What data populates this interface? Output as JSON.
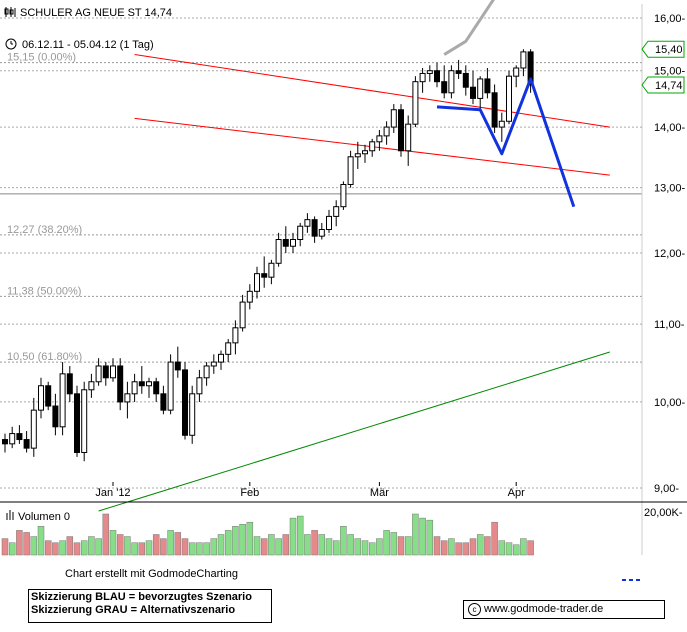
{
  "header": {
    "title": "SCHULER AG NEUE ST 14,74",
    "period": "06.12.11 - 05.04.12 (1 Tag)"
  },
  "icons": {
    "chart": "candlestick-chart-icon",
    "clock": "clock-icon",
    "volume": "volume-bars-icon",
    "copyright": "copyright-icon"
  },
  "fib_levels": [
    {
      "label": "15,15 (0.00%)",
      "value": 15.15
    },
    {
      "label": "12,27 (38.20%)",
      "value": 12.27
    },
    {
      "label": "11,38 (50.00%)",
      "value": 11.38
    },
    {
      "label": "10,50 (61.80%)",
      "value": 10.5
    }
  ],
  "price_badges": [
    {
      "label": "15,40",
      "value": 15.4
    },
    {
      "label": "14,74",
      "value": 14.74
    }
  ],
  "volume": {
    "label": "Volumen 0",
    "axis_label": "20,00K-"
  },
  "credit": "Chart erstellt mit GodmodeCharting",
  "legend_box": {
    "line1": "Skizzierung BLAU = bevorzugtes Szenario",
    "line2": "Skizzierung GRAU = Alternativszenario"
  },
  "source": "www.godmode-trader.de",
  "colors": {
    "up": "#88dd88",
    "down": "#e58a8a",
    "blue_scenario": "#1133dd",
    "grey_scenario": "#aaaaaa",
    "channel": "#ff0000",
    "trendline": "#008800",
    "badge_border": "#00aa00"
  },
  "chart_data": {
    "type": "candlestick",
    "title": "SCHULER AG NEUE ST 14,74",
    "y_axis": {
      "scale": "log",
      "ticks": [
        9.0,
        10.0,
        11.0,
        12.0,
        13.0,
        14.0,
        15.0,
        16.0
      ],
      "tick_labels": [
        "9,00",
        "10,00",
        "11,00",
        "12,00",
        "13,00",
        "14,00",
        "15,00",
        "16,00"
      ]
    },
    "x_labels": [
      "Jan '12",
      "Feb",
      "Mär",
      "Apr"
    ],
    "horizontal_line": 12.9,
    "red_channel": {
      "upper": [
        [
          18,
          15.3
        ],
        [
          84,
          14.0
        ]
      ],
      "lower": [
        [
          18,
          14.15
        ],
        [
          84,
          13.2
        ]
      ]
    },
    "green_trendline": [
      [
        13,
        8.75
      ],
      [
        84,
        10.63
      ]
    ],
    "blue_scenario": [
      [
        60,
        14.35
      ],
      [
        66,
        14.3
      ],
      [
        69,
        13.55
      ],
      [
        73,
        14.85
      ],
      [
        79,
        12.7
      ]
    ],
    "grey_scenario": [
      [
        61,
        15.3
      ],
      [
        64,
        15.55
      ],
      [
        68,
        16.4
      ]
    ],
    "ohlc": [
      [
        9.55,
        9.62,
        9.4,
        9.5
      ],
      [
        9.5,
        9.7,
        9.45,
        9.62
      ],
      [
        9.62,
        9.72,
        9.5,
        9.55
      ],
      [
        9.55,
        9.65,
        9.4,
        9.45
      ],
      [
        9.45,
        10.05,
        9.35,
        9.9
      ],
      [
        9.9,
        10.3,
        9.8,
        10.2
      ],
      [
        10.2,
        10.25,
        9.9,
        9.95
      ],
      [
        9.95,
        10.1,
        9.6,
        9.7
      ],
      [
        9.7,
        10.5,
        9.6,
        10.35
      ],
      [
        10.35,
        10.45,
        10.0,
        10.1
      ],
      [
        10.1,
        10.2,
        9.35,
        9.4
      ],
      [
        9.4,
        10.25,
        9.3,
        10.15
      ],
      [
        10.15,
        10.35,
        10.05,
        10.25
      ],
      [
        10.25,
        10.55,
        10.2,
        10.45
      ],
      [
        10.45,
        10.5,
        10.2,
        10.3
      ],
      [
        10.3,
        10.55,
        10.25,
        10.45
      ],
      [
        10.45,
        10.55,
        9.9,
        10.0
      ],
      [
        10.0,
        10.25,
        9.8,
        10.1
      ],
      [
        10.1,
        10.35,
        10.0,
        10.25
      ],
      [
        10.25,
        10.45,
        10.1,
        10.2
      ],
      [
        10.2,
        10.3,
        10.05,
        10.25
      ],
      [
        10.25,
        10.3,
        10.0,
        10.1
      ],
      [
        10.1,
        10.2,
        9.85,
        9.9
      ],
      [
        9.9,
        10.6,
        9.85,
        10.5
      ],
      [
        10.5,
        10.7,
        10.3,
        10.4
      ],
      [
        10.4,
        10.5,
        9.55,
        9.6
      ],
      [
        9.6,
        10.2,
        9.5,
        10.1
      ],
      [
        10.1,
        10.4,
        10.0,
        10.3
      ],
      [
        10.3,
        10.5,
        10.2,
        10.45
      ],
      [
        10.45,
        10.6,
        10.35,
        10.5
      ],
      [
        10.5,
        10.65,
        10.4,
        10.6
      ],
      [
        10.6,
        10.8,
        10.5,
        10.75
      ],
      [
        10.75,
        11.05,
        10.6,
        10.95
      ],
      [
        10.95,
        11.4,
        10.9,
        11.3
      ],
      [
        11.3,
        11.55,
        11.2,
        11.45
      ],
      [
        11.45,
        11.8,
        11.35,
        11.7
      ],
      [
        11.7,
        11.95,
        11.5,
        11.65
      ],
      [
        11.65,
        11.9,
        11.55,
        11.85
      ],
      [
        11.85,
        12.3,
        11.8,
        12.2
      ],
      [
        12.2,
        12.4,
        12.0,
        12.1
      ],
      [
        12.1,
        12.3,
        12.0,
        12.2
      ],
      [
        12.2,
        12.45,
        12.1,
        12.4
      ],
      [
        12.4,
        12.6,
        12.3,
        12.5
      ],
      [
        12.5,
        12.55,
        12.15,
        12.25
      ],
      [
        12.25,
        12.45,
        12.2,
        12.35
      ],
      [
        12.35,
        12.65,
        12.3,
        12.55
      ],
      [
        12.55,
        12.8,
        12.4,
        12.7
      ],
      [
        12.7,
        13.1,
        12.65,
        13.05
      ],
      [
        13.05,
        13.6,
        13.0,
        13.5
      ],
      [
        13.5,
        13.75,
        13.3,
        13.55
      ],
      [
        13.55,
        13.7,
        13.4,
        13.6
      ],
      [
        13.6,
        13.8,
        13.5,
        13.75
      ],
      [
        13.75,
        13.95,
        13.6,
        13.85
      ],
      [
        13.85,
        14.1,
        13.7,
        14.0
      ],
      [
        14.0,
        14.4,
        13.9,
        14.3
      ],
      [
        14.3,
        14.4,
        13.5,
        13.6
      ],
      [
        13.6,
        14.2,
        13.35,
        14.05
      ],
      [
        14.05,
        14.9,
        14.0,
        14.8
      ],
      [
        14.8,
        15.05,
        14.6,
        14.95
      ],
      [
        14.95,
        15.1,
        14.8,
        15.0
      ],
      [
        15.0,
        15.15,
        14.7,
        14.8
      ],
      [
        14.8,
        15.1,
        14.5,
        14.6
      ],
      [
        14.6,
        15.1,
        14.5,
        15.0
      ],
      [
        15.0,
        15.2,
        14.85,
        14.95
      ],
      [
        14.95,
        15.1,
        14.55,
        14.7
      ],
      [
        14.7,
        15.0,
        14.4,
        14.5
      ],
      [
        14.5,
        14.9,
        14.3,
        14.85
      ],
      [
        14.85,
        15.05,
        14.5,
        14.6
      ],
      [
        14.6,
        14.75,
        13.9,
        14.0
      ],
      [
        14.0,
        14.25,
        13.75,
        14.1
      ],
      [
        14.1,
        15.0,
        14.05,
        14.9
      ],
      [
        14.9,
        15.1,
        14.7,
        15.05
      ],
      [
        15.05,
        15.4,
        14.9,
        15.35
      ],
      [
        15.35,
        15.4,
        14.6,
        14.74
      ]
    ],
    "volume_values": [
      0.4,
      0.3,
      0.6,
      0.55,
      0.45,
      0.7,
      0.35,
      0.3,
      0.35,
      0.45,
      0.3,
      0.35,
      0.45,
      0.4,
      1.0,
      0.6,
      0.5,
      0.45,
      0.3,
      0.3,
      0.35,
      0.5,
      0.4,
      0.6,
      0.55,
      0.4,
      0.3,
      0.3,
      0.3,
      0.4,
      0.5,
      0.6,
      0.7,
      0.75,
      0.8,
      0.45,
      0.4,
      0.5,
      0.4,
      0.5,
      0.9,
      0.95,
      0.5,
      0.6,
      0.5,
      0.4,
      0.35,
      0.7,
      0.5,
      0.4,
      0.35,
      0.3,
      0.4,
      0.6,
      0.55,
      0.45,
      0.45,
      1.0,
      0.9,
      0.85,
      0.45,
      0.35,
      0.4,
      0.3,
      0.3,
      0.4,
      0.5,
      0.45,
      0.8,
      0.35,
      0.3,
      0.25,
      0.4,
      0.35
    ]
  }
}
